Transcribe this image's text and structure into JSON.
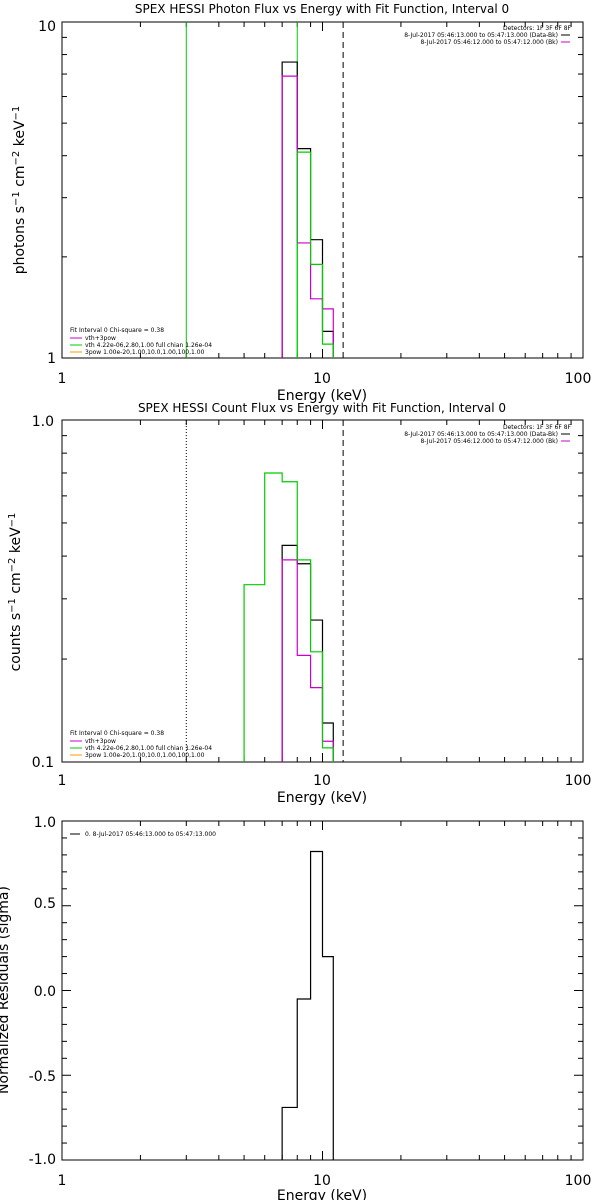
{
  "chart_data": [
    {
      "type": "line",
      "title": "SPEX HESSI Photon Flux vs Energy with Fit Function, Interval 0",
      "xlabel": "Energy (keV)",
      "ylabel": "photons s^-1 cm^-2 keV^-1",
      "x_scale": "log",
      "y_scale": "log",
      "xlim": [
        1,
        100
      ],
      "ylim": [
        1,
        10
      ],
      "x_ticks": [
        "1",
        "10",
        "100"
      ],
      "y_ticks": [
        "1",
        "10"
      ],
      "legend_top_right": {
        "header": "Detectors: 1F 3F 6F 8F",
        "entries": [
          {
            "text": "8-Jul-2017 05:46:13.000 to 05:47:13.000 (Data-Bk)",
            "color": "#000000"
          },
          {
            "text": "8-Jul-2017 05:46:12.000 to 05:47:12.000 (Bk)",
            "color": "#cc00cc"
          }
        ]
      },
      "legend_bottom_left": {
        "entries": [
          {
            "text": "Fit Interval 0   Chi-square = 0.38",
            "color": null
          },
          {
            "text": "vth+3pow",
            "color": "#cc00cc"
          },
          {
            "text": "vth 4.22e-06,2.80,1.00  full chian 1.26e-04",
            "color": "#00cc00"
          },
          {
            "text": "3pow 1.00e-20,1.00,10.0,1.00,100,1.00",
            "color": "#ff9900"
          }
        ]
      },
      "vlines": [
        {
          "x": 3.0,
          "color": "#00cc00",
          "style": "solid"
        },
        {
          "x": 8.0,
          "color": "#00cc00",
          "style": "solid"
        },
        {
          "x": 12.0,
          "color": "#000000",
          "style": "dashed"
        }
      ],
      "series": [
        {
          "color": "#000000",
          "steps": [
            [
              7.0,
              8.0,
              7.6
            ],
            [
              8.0,
              9.0,
              4.2
            ],
            [
              9.0,
              10.0,
              2.25
            ],
            [
              10.0,
              11.0,
              1.2
            ]
          ]
        },
        {
          "color": "#cc00cc",
          "steps": [
            [
              7.0,
              8.0,
              6.9
            ],
            [
              8.0,
              9.0,
              2.2
            ],
            [
              9.0,
              10.0,
              1.5
            ],
            [
              10.0,
              11.0,
              1.4
            ]
          ]
        },
        {
          "color": "#00cc00",
          "steps": [
            [
              8.0,
              9.0,
              4.1
            ],
            [
              9.0,
              10.0,
              1.9
            ],
            [
              10.0,
              11.0,
              1.1
            ]
          ]
        }
      ]
    },
    {
      "type": "line",
      "title": "SPEX HESSI Count Flux vs Energy with Fit Function, Interval 0",
      "xlabel": "Energy (keV)",
      "ylabel": "counts s^-1 cm^-2 keV^-1",
      "x_scale": "log",
      "y_scale": "log",
      "xlim": [
        1,
        100
      ],
      "ylim": [
        0.1,
        1.0
      ],
      "x_ticks": [
        "1",
        "10",
        "100"
      ],
      "y_ticks": [
        "0.1",
        "1.0"
      ],
      "legend_top_right": {
        "header": "Detectors: 1F 3F 6F 8F",
        "entries": [
          {
            "text": "8-Jul-2017 05:46:13.000 to 05:47:13.000 (Data-Bk)",
            "color": "#000000"
          },
          {
            "text": "8-Jul-2017 05:46:12.000 to 05:47:12.000 (Bk)",
            "color": "#cc00cc"
          }
        ]
      },
      "legend_bottom_left": {
        "entries": [
          {
            "text": "Fit Interval 0   Chi-square = 0.38",
            "color": null
          },
          {
            "text": "vth+3pow",
            "color": "#cc00cc"
          },
          {
            "text": "vth 4.22e-06,2.80,1.00  full chian 1.26e-04",
            "color": "#00cc00"
          },
          {
            "text": "3pow 1.00e-20,1.00,10.0,1.00,100,1.00",
            "color": "#ff9900"
          }
        ]
      },
      "vlines": [
        {
          "x": 3.0,
          "color": "#000000",
          "style": "dotted"
        },
        {
          "x": 12.0,
          "color": "#000000",
          "style": "dashed"
        }
      ],
      "series": [
        {
          "color": "#000000",
          "steps": [
            [
              7.0,
              8.0,
              0.43
            ],
            [
              8.0,
              9.0,
              0.38
            ],
            [
              9.0,
              10.0,
              0.26
            ],
            [
              10.0,
              11.0,
              0.13
            ]
          ]
        },
        {
          "color": "#cc00cc",
          "steps": [
            [
              7.0,
              8.0,
              0.39
            ],
            [
              8.0,
              9.0,
              0.205
            ],
            [
              9.0,
              10.0,
              0.165
            ],
            [
              10.0,
              11.0,
              0.115
            ]
          ]
        },
        {
          "color": "#00cc00",
          "steps": [
            [
              5.0,
              6.0,
              0.33
            ],
            [
              6.0,
              7.0,
              0.7
            ],
            [
              7.0,
              8.0,
              0.66
            ],
            [
              8.0,
              9.0,
              0.39
            ],
            [
              9.0,
              10.0,
              0.21
            ],
            [
              10.0,
              11.0,
              0.11
            ]
          ]
        }
      ]
    },
    {
      "type": "line",
      "title": "",
      "xlabel": "Energy (keV)",
      "ylabel": "Normalized Residuals (sigma)",
      "x_scale": "log",
      "y_scale": "linear",
      "xlim": [
        1,
        100
      ],
      "ylim": [
        -1.0,
        1.0
      ],
      "x_ticks": [
        "1",
        "10",
        "100"
      ],
      "y_ticks": [
        "-1.0",
        "-0.5",
        "0.0",
        "0.5",
        "1.0"
      ],
      "legend_top_left": {
        "entries": [
          {
            "text": "0. 8-Jul-2017 05:46:13.000 to 05:47:13.000",
            "color": "#000000"
          }
        ]
      },
      "series": [
        {
          "color": "#000000",
          "steps": [
            [
              7.0,
              8.0,
              -0.69
            ],
            [
              8.0,
              9.0,
              -0.05
            ],
            [
              9.0,
              10.0,
              0.82
            ],
            [
              10.0,
              11.0,
              0.2
            ]
          ]
        }
      ]
    }
  ]
}
